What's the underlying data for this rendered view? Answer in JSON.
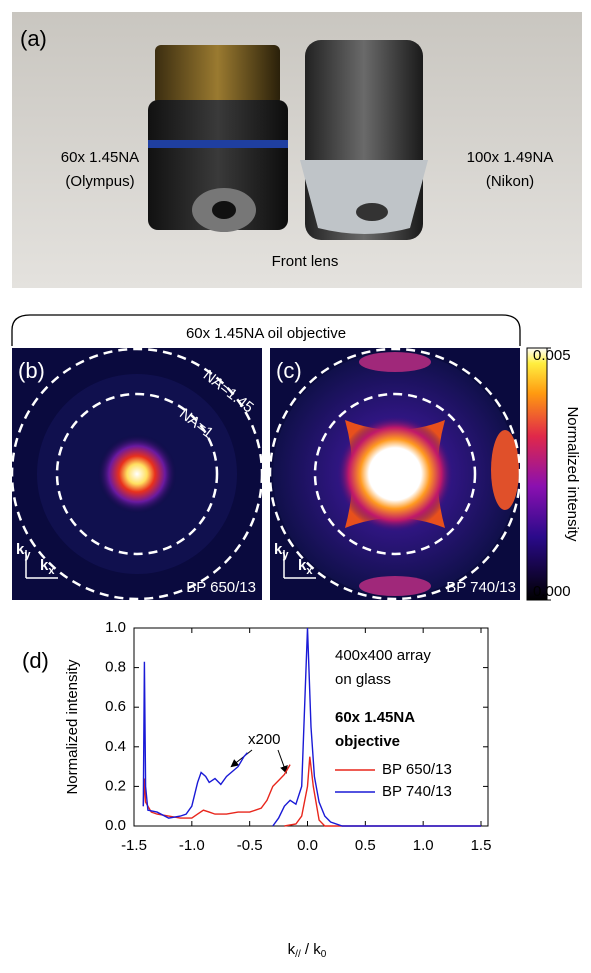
{
  "panel_a": {
    "label": "(a)",
    "left_lens": [
      "60x 1.45NA",
      "(Olympus)"
    ],
    "right_lens": [
      "100x 1.49NA",
      "(Nikon)"
    ],
    "caption": "Front lens"
  },
  "bracket_label": "60x 1.45NA oil objective",
  "panel_b": {
    "label": "(b)",
    "na_outer": "NA=1.45",
    "na_inner": "NA=1",
    "ky": [
      "k",
      "y"
    ],
    "kx": [
      "k",
      "x"
    ],
    "filter": "BP 650/13"
  },
  "panel_c": {
    "label": "(c)",
    "ky": [
      "k",
      "y"
    ],
    "kx": [
      "k",
      "x"
    ],
    "filter": "BP 740/13"
  },
  "colorbar": {
    "label": "Normalized intensity",
    "ticks": [
      {
        "value": 0.005,
        "label": "0.005"
      },
      {
        "value": 0,
        "label": "0.000"
      }
    ],
    "lim": [
      0,
      0.005
    ]
  },
  "chart_data": {
    "type": "line",
    "panel_label": "(d)",
    "y_label": "Normalized intensity",
    "x_label": [
      "k",
      "//",
      " / k",
      "0"
    ],
    "xlim": [
      -1.5,
      1.5
    ],
    "ylim": [
      0,
      1
    ],
    "xticks": [
      -1.5,
      {
        "value": -1,
        "label": "-1.0"
      },
      -0.5,
      {
        "value": 0,
        "label": "0.0"
      },
      0.5,
      {
        "value": 1,
        "label": "1.0"
      },
      1.5
    ],
    "yticks": [
      {
        "value": 0,
        "label": "0.0"
      },
      0.2,
      0.4,
      0.6,
      0.8,
      {
        "value": 1,
        "label": "1.0"
      }
    ],
    "annotations": [
      "400x400 array",
      "on glass"
    ],
    "bold_annotations": [
      "60x 1.45NA",
      "objective"
    ],
    "scale_note": "x200",
    "series": [
      {
        "name": "BP 650/13",
        "color": "#e8261c",
        "x": [
          -1.42,
          -1.41,
          -1.4,
          -1.35,
          -1.3,
          -1.2,
          -1.1,
          -1.0,
          -0.95,
          -0.9,
          -0.85,
          -0.8,
          -0.7,
          -0.6,
          -0.5,
          -0.4,
          -0.35,
          -0.3,
          -0.25,
          -0.2,
          -0.15,
          null,
          -0.2,
          -0.1,
          -0.05,
          0.0,
          0.02,
          0.05,
          0.1,
          0.15,
          0.2,
          1.5
        ],
        "values": [
          0.1,
          0.24,
          0.12,
          0.07,
          0.06,
          0.05,
          0.04,
          0.04,
          0.06,
          0.08,
          0.07,
          0.06,
          0.06,
          0.07,
          0.07,
          0.09,
          0.13,
          0.2,
          0.23,
          0.26,
          0.31,
          null,
          0.0,
          0.01,
          0.05,
          0.2,
          0.35,
          0.2,
          0.03,
          0.0,
          0.0,
          0.0
        ]
      },
      {
        "name": "BP 740/13",
        "color": "#1a1ad6",
        "x": [
          -1.42,
          -1.41,
          -1.4,
          -1.38,
          -1.3,
          -1.2,
          -1.1,
          -1.05,
          -1.0,
          -0.95,
          -0.92,
          -0.88,
          -0.85,
          -0.8,
          -0.75,
          -0.7,
          -0.6,
          -0.55,
          -0.52,
          null,
          -0.3,
          -0.25,
          -0.2,
          -0.15,
          -0.1,
          -0.05,
          0.0,
          0.03,
          0.06,
          0.1,
          0.15,
          0.2,
          0.3,
          1.5
        ],
        "values": [
          0.1,
          0.83,
          0.2,
          0.08,
          0.07,
          0.04,
          0.05,
          0.06,
          0.1,
          0.22,
          0.27,
          0.25,
          0.22,
          0.24,
          0.21,
          0.25,
          0.3,
          0.35,
          0.37,
          null,
          0.0,
          0.04,
          0.1,
          0.13,
          0.11,
          0.2,
          1.0,
          0.5,
          0.25,
          0.12,
          0.05,
          0.02,
          0.0,
          0.0
        ]
      }
    ]
  }
}
